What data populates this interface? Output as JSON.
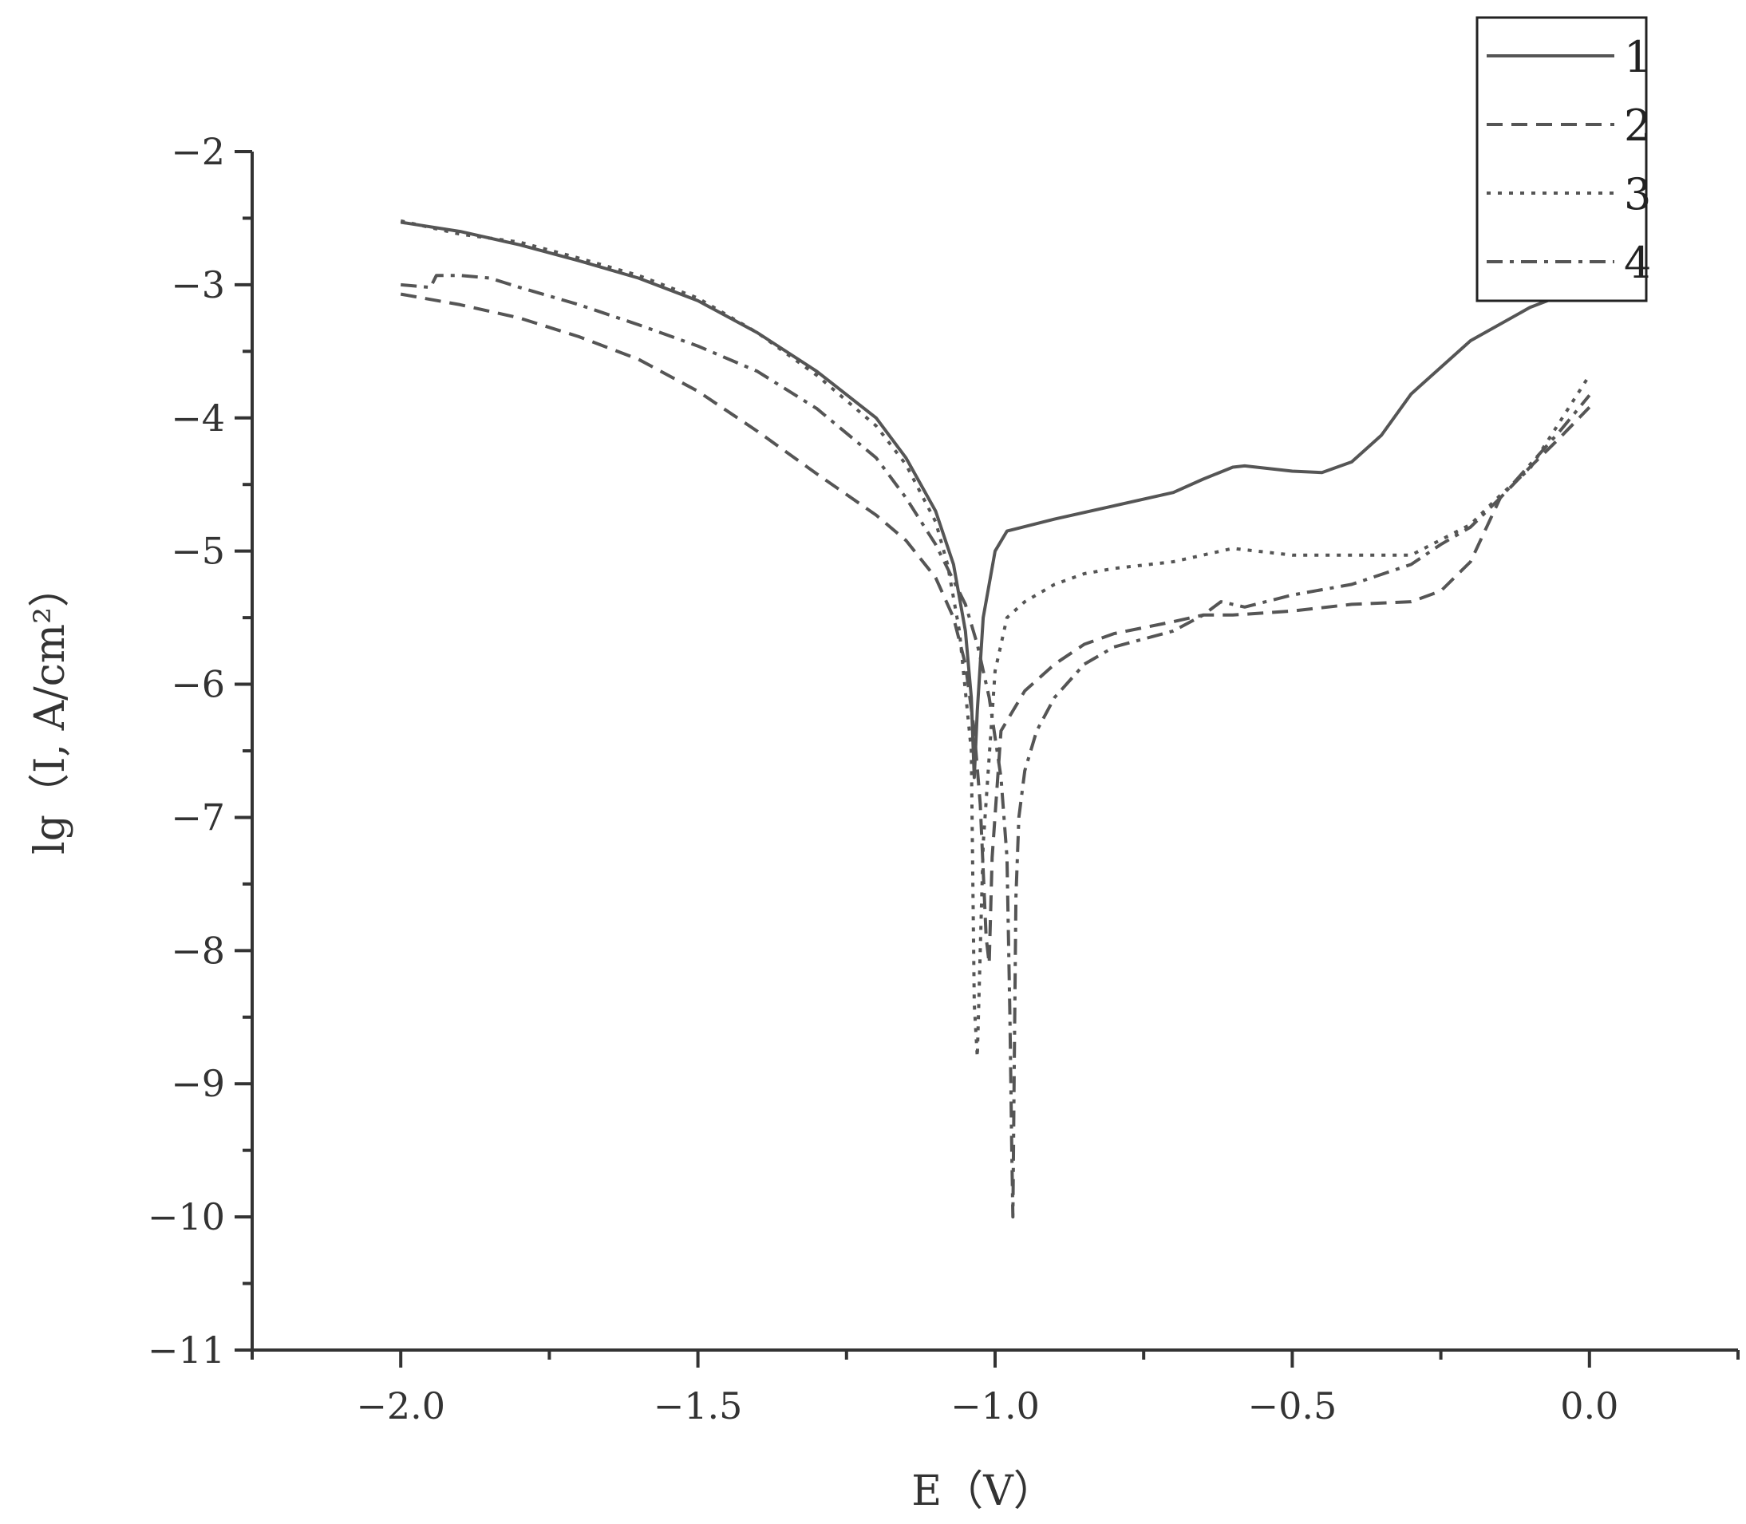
{
  "chart_data": {
    "type": "line",
    "title": "",
    "xlabel": "E（V）",
    "ylabel": "lg（I, A/cm²）",
    "xlim": [
      -2.25,
      0.25
    ],
    "ylim": [
      -11,
      -2
    ],
    "grid": false,
    "legend_position": "top-right",
    "x_ticks": [
      {
        "value": -2.0,
        "label": "−2.0"
      },
      {
        "value": -1.5,
        "label": "−1.5"
      },
      {
        "value": -1.0,
        "label": "−1.0"
      },
      {
        "value": -0.5,
        "label": "−0.5"
      },
      {
        "value": 0.0,
        "label": "0.0"
      }
    ],
    "y_ticks": [
      {
        "value": -2,
        "label": "−2"
      },
      {
        "value": -3,
        "label": "−3"
      },
      {
        "value": -4,
        "label": "−4"
      },
      {
        "value": -5,
        "label": "−5"
      },
      {
        "value": -6,
        "label": "−6"
      },
      {
        "value": -7,
        "label": "−7"
      },
      {
        "value": -8,
        "label": "−8"
      },
      {
        "value": -9,
        "label": "−9"
      },
      {
        "value": -10,
        "label": "−10"
      },
      {
        "value": -11,
        "label": "−11"
      }
    ],
    "series": [
      {
        "name": "1",
        "style": "solid",
        "color": "#555555",
        "points": [
          [
            -2.0,
            -2.53
          ],
          [
            -1.9,
            -2.6
          ],
          [
            -1.8,
            -2.7
          ],
          [
            -1.7,
            -2.82
          ],
          [
            -1.6,
            -2.95
          ],
          [
            -1.5,
            -3.12
          ],
          [
            -1.4,
            -3.36
          ],
          [
            -1.3,
            -3.65
          ],
          [
            -1.2,
            -4.0
          ],
          [
            -1.15,
            -4.3
          ],
          [
            -1.1,
            -4.7
          ],
          [
            -1.07,
            -5.1
          ],
          [
            -1.05,
            -5.6
          ],
          [
            -1.04,
            -6.1
          ],
          [
            -1.035,
            -6.7
          ],
          [
            -1.03,
            -6.2
          ],
          [
            -1.02,
            -5.5
          ],
          [
            -1.0,
            -5.0
          ],
          [
            -0.98,
            -4.85
          ],
          [
            -0.9,
            -4.76
          ],
          [
            -0.8,
            -4.66
          ],
          [
            -0.7,
            -4.56
          ],
          [
            -0.65,
            -4.46
          ],
          [
            -0.6,
            -4.37
          ],
          [
            -0.58,
            -4.36
          ],
          [
            -0.5,
            -4.4
          ],
          [
            -0.45,
            -4.41
          ],
          [
            -0.4,
            -4.33
          ],
          [
            -0.35,
            -4.13
          ],
          [
            -0.3,
            -3.82
          ],
          [
            -0.2,
            -3.42
          ],
          [
            -0.1,
            -3.17
          ],
          [
            -0.03,
            -3.05
          ]
        ]
      },
      {
        "name": "2",
        "style": "dashed",
        "color": "#555555",
        "points": [
          [
            -2.0,
            -3.07
          ],
          [
            -1.9,
            -3.15
          ],
          [
            -1.8,
            -3.25
          ],
          [
            -1.7,
            -3.39
          ],
          [
            -1.6,
            -3.56
          ],
          [
            -1.5,
            -3.8
          ],
          [
            -1.4,
            -4.1
          ],
          [
            -1.3,
            -4.42
          ],
          [
            -1.2,
            -4.73
          ],
          [
            -1.15,
            -4.92
          ],
          [
            -1.1,
            -5.2
          ],
          [
            -1.07,
            -5.5
          ],
          [
            -1.05,
            -5.85
          ],
          [
            -1.035,
            -6.35
          ],
          [
            -1.025,
            -6.9
          ],
          [
            -1.015,
            -7.9
          ],
          [
            -1.01,
            -8.1
          ],
          [
            -1.005,
            -7.3
          ],
          [
            -0.99,
            -6.35
          ],
          [
            -0.97,
            -6.2
          ],
          [
            -0.95,
            -6.05
          ],
          [
            -0.9,
            -5.85
          ],
          [
            -0.85,
            -5.7
          ],
          [
            -0.8,
            -5.62
          ],
          [
            -0.7,
            -5.53
          ],
          [
            -0.65,
            -5.48
          ],
          [
            -0.6,
            -5.48
          ],
          [
            -0.5,
            -5.45
          ],
          [
            -0.4,
            -5.4
          ],
          [
            -0.3,
            -5.38
          ],
          [
            -0.25,
            -5.3
          ],
          [
            -0.2,
            -5.08
          ],
          [
            -0.15,
            -4.6
          ],
          [
            -0.1,
            -4.37
          ],
          [
            -0.05,
            -4.15
          ],
          [
            0.0,
            -3.92
          ]
        ]
      },
      {
        "name": "3",
        "style": "dotted",
        "color": "#555555",
        "points": [
          [
            -2.0,
            -2.52
          ],
          [
            -1.9,
            -2.62
          ],
          [
            -1.8,
            -2.68
          ],
          [
            -1.7,
            -2.8
          ],
          [
            -1.6,
            -2.93
          ],
          [
            -1.5,
            -3.1
          ],
          [
            -1.4,
            -3.36
          ],
          [
            -1.3,
            -3.68
          ],
          [
            -1.2,
            -4.06
          ],
          [
            -1.15,
            -4.35
          ],
          [
            -1.1,
            -4.78
          ],
          [
            -1.08,
            -5.1
          ],
          [
            -1.06,
            -5.6
          ],
          [
            -1.04,
            -6.5
          ],
          [
            -1.035,
            -8.4
          ],
          [
            -1.03,
            -8.8
          ],
          [
            -1.02,
            -7.2
          ],
          [
            -1.0,
            -5.9
          ],
          [
            -0.98,
            -5.5
          ],
          [
            -0.95,
            -5.38
          ],
          [
            -0.9,
            -5.25
          ],
          [
            -0.85,
            -5.17
          ],
          [
            -0.8,
            -5.13
          ],
          [
            -0.7,
            -5.08
          ],
          [
            -0.6,
            -4.98
          ],
          [
            -0.5,
            -5.03
          ],
          [
            -0.4,
            -5.03
          ],
          [
            -0.3,
            -5.03
          ],
          [
            -0.2,
            -4.8
          ],
          [
            -0.15,
            -4.58
          ],
          [
            -0.1,
            -4.38
          ],
          [
            -0.05,
            -4.03
          ],
          [
            0.0,
            -3.68
          ]
        ]
      },
      {
        "name": "4",
        "style": "dashdot",
        "color": "#555555",
        "points": [
          [
            -2.0,
            -3.0
          ],
          [
            -1.95,
            -3.02
          ],
          [
            -1.94,
            -2.93
          ],
          [
            -1.9,
            -2.93
          ],
          [
            -1.85,
            -2.95
          ],
          [
            -1.8,
            -3.02
          ],
          [
            -1.7,
            -3.15
          ],
          [
            -1.6,
            -3.3
          ],
          [
            -1.5,
            -3.46
          ],
          [
            -1.4,
            -3.65
          ],
          [
            -1.3,
            -3.93
          ],
          [
            -1.2,
            -4.3
          ],
          [
            -1.15,
            -4.6
          ],
          [
            -1.1,
            -4.95
          ],
          [
            -1.05,
            -5.4
          ],
          [
            -1.03,
            -5.7
          ],
          [
            -1.01,
            -6.1
          ],
          [
            -0.99,
            -6.7
          ],
          [
            -0.98,
            -7.3
          ],
          [
            -0.975,
            -8.5
          ],
          [
            -0.972,
            -9.5
          ],
          [
            -0.97,
            -10.0
          ],
          [
            -0.968,
            -9.0
          ],
          [
            -0.965,
            -7.6
          ],
          [
            -0.96,
            -7.0
          ],
          [
            -0.95,
            -6.65
          ],
          [
            -0.93,
            -6.35
          ],
          [
            -0.9,
            -6.1
          ],
          [
            -0.85,
            -5.85
          ],
          [
            -0.8,
            -5.72
          ],
          [
            -0.7,
            -5.6
          ],
          [
            -0.65,
            -5.48
          ],
          [
            -0.62,
            -5.38
          ],
          [
            -0.58,
            -5.42
          ],
          [
            -0.5,
            -5.33
          ],
          [
            -0.4,
            -5.25
          ],
          [
            -0.3,
            -5.1
          ],
          [
            -0.25,
            -4.95
          ],
          [
            -0.2,
            -4.82
          ],
          [
            -0.15,
            -4.6
          ],
          [
            -0.1,
            -4.35
          ],
          [
            -0.05,
            -4.1
          ],
          [
            0.0,
            -3.83
          ]
        ]
      }
    ]
  }
}
